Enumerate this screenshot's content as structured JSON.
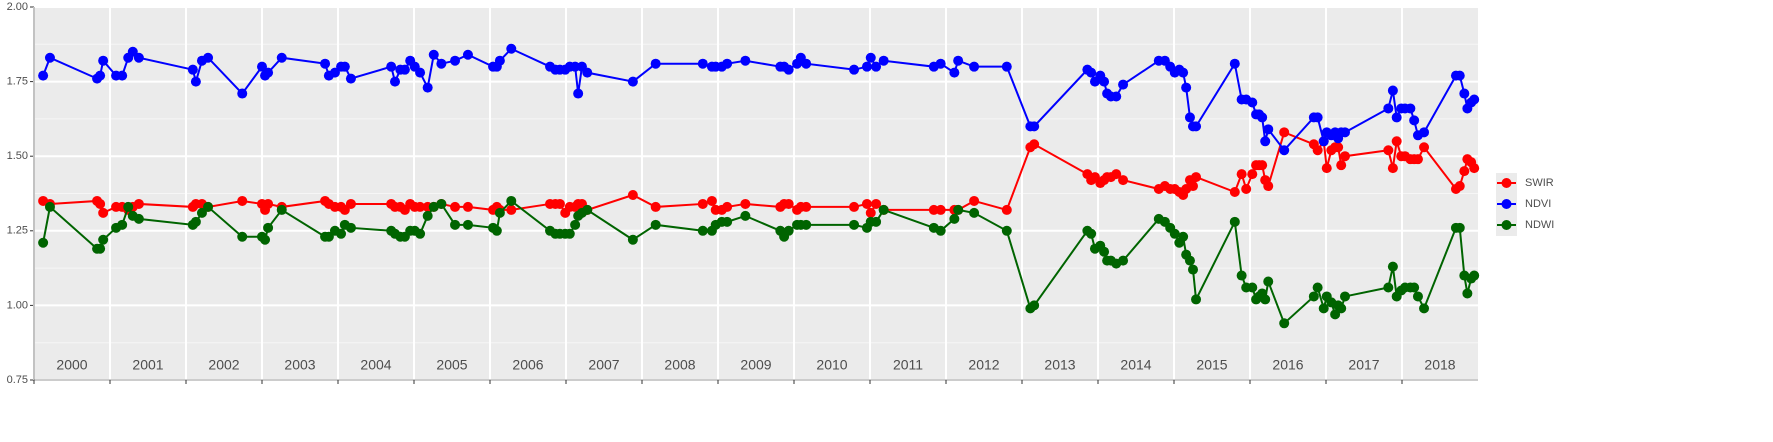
{
  "chart_data": {
    "type": "line",
    "x": [
      2000.12,
      2000.21,
      2000.83,
      2000.87,
      2000.91,
      2001.08,
      2001.16,
      2001.24,
      2001.3,
      2001.38,
      2002.09,
      2002.13,
      2002.21,
      2002.29,
      2002.74,
      2003.0,
      2003.04,
      2003.08,
      2003.26,
      2003.83,
      2003.88,
      2003.96,
      2004.04,
      2004.09,
      2004.17,
      2004.7,
      2004.75,
      2004.82,
      2004.88,
      2004.95,
      2005.01,
      2005.08,
      2005.18,
      2005.26,
      2005.36,
      2005.54,
      2005.71,
      2006.04,
      2006.09,
      2006.13,
      2006.28,
      2006.79,
      2006.86,
      2006.92,
      2006.99,
      2007.05,
      2007.12,
      2007.16,
      2007.21,
      2007.28,
      2007.88,
      2008.18,
      2008.8,
      2008.92,
      2008.97,
      2009.05,
      2009.12,
      2009.36,
      2009.82,
      2009.87,
      2009.93,
      2010.04,
      2010.09,
      2010.16,
      2010.79,
      2010.96,
      2011.01,
      2011.08,
      2011.18,
      2011.84,
      2011.93,
      2012.11,
      2012.16,
      2012.37,
      2012.8,
      2013.11,
      2013.16,
      2013.86,
      2013.91,
      2013.96,
      2014.03,
      2014.08,
      2014.12,
      2014.17,
      2014.24,
      2014.33,
      2014.8,
      2014.88,
      2014.95,
      2015.01,
      2015.07,
      2015.12,
      2015.16,
      2015.21,
      2015.25,
      2015.29,
      2015.8,
      2015.89,
      2015.95,
      2016.03,
      2016.08,
      2016.12,
      2016.16,
      2016.2,
      2016.24,
      2016.45,
      2016.84,
      2016.89,
      2016.97,
      2017.01,
      2017.07,
      2017.12,
      2017.16,
      2017.2,
      2017.25,
      2017.82,
      2017.88,
      2017.93,
      2017.99,
      2018.04,
      2018.11,
      2018.16,
      2018.21,
      2018.29,
      2018.71,
      2018.76,
      2018.82,
      2018.86,
      2018.91,
      2018.95
    ],
    "series": [
      {
        "name": "SWIR",
        "color": "#ff0000",
        "values": [
          1.35,
          1.34,
          1.35,
          1.34,
          1.31,
          1.33,
          1.33,
          1.32,
          1.33,
          1.34,
          1.33,
          1.34,
          1.34,
          1.33,
          1.35,
          1.34,
          1.32,
          1.34,
          1.33,
          1.35,
          1.34,
          1.33,
          1.33,
          1.32,
          1.34,
          1.34,
          1.33,
          1.33,
          1.32,
          1.34,
          1.33,
          1.33,
          1.33,
          1.33,
          1.34,
          1.33,
          1.33,
          1.32,
          1.33,
          1.32,
          1.32,
          1.34,
          1.34,
          1.34,
          1.31,
          1.33,
          1.33,
          1.34,
          1.34,
          1.32,
          1.37,
          1.33,
          1.34,
          1.35,
          1.32,
          1.32,
          1.33,
          1.34,
          1.33,
          1.34,
          1.34,
          1.32,
          1.33,
          1.33,
          1.33,
          1.34,
          1.31,
          1.34,
          1.32,
          1.32,
          1.32,
          1.32,
          1.32,
          1.35,
          1.32,
          1.53,
          1.54,
          1.44,
          1.42,
          1.43,
          1.41,
          1.42,
          1.43,
          1.43,
          1.44,
          1.42,
          1.39,
          1.4,
          1.39,
          1.39,
          1.38,
          1.37,
          1.39,
          1.42,
          1.4,
          1.43,
          1.38,
          1.44,
          1.39,
          1.44,
          1.47,
          1.47,
          1.47,
          1.42,
          1.4,
          1.58,
          1.54,
          1.52,
          1.55,
          1.46,
          1.52,
          1.53,
          1.53,
          1.47,
          1.5,
          1.52,
          1.46,
          1.55,
          1.5,
          1.5,
          1.49,
          1.49,
          1.49,
          1.53,
          1.39,
          1.4,
          1.45,
          1.49,
          1.48,
          1.46
        ]
      },
      {
        "name": "NDVI",
        "color": "#0000ff",
        "values": [
          1.77,
          1.83,
          1.76,
          1.77,
          1.82,
          1.77,
          1.77,
          1.83,
          1.85,
          1.83,
          1.79,
          1.75,
          1.82,
          1.83,
          1.71,
          1.8,
          1.77,
          1.78,
          1.83,
          1.81,
          1.77,
          1.78,
          1.8,
          1.8,
          1.76,
          1.8,
          1.75,
          1.79,
          1.79,
          1.82,
          1.8,
          1.78,
          1.73,
          1.84,
          1.81,
          1.82,
          1.84,
          1.8,
          1.8,
          1.82,
          1.86,
          1.8,
          1.79,
          1.79,
          1.79,
          1.8,
          1.8,
          1.71,
          1.8,
          1.78,
          1.75,
          1.81,
          1.81,
          1.8,
          1.8,
          1.8,
          1.81,
          1.82,
          1.8,
          1.8,
          1.79,
          1.81,
          1.83,
          1.81,
          1.79,
          1.8,
          1.83,
          1.8,
          1.82,
          1.8,
          1.81,
          1.78,
          1.82,
          1.8,
          1.8,
          1.6,
          1.6,
          1.79,
          1.78,
          1.75,
          1.77,
          1.75,
          1.71,
          1.7,
          1.7,
          1.74,
          1.82,
          1.82,
          1.8,
          1.78,
          1.79,
          1.78,
          1.73,
          1.63,
          1.6,
          1.6,
          1.81,
          1.69,
          1.69,
          1.68,
          1.64,
          1.64,
          1.63,
          1.55,
          1.59,
          1.52,
          1.63,
          1.63,
          1.55,
          1.58,
          1.57,
          1.58,
          1.56,
          1.58,
          1.58,
          1.66,
          1.72,
          1.63,
          1.66,
          1.66,
          1.66,
          1.62,
          1.57,
          1.58,
          1.77,
          1.77,
          1.71,
          1.66,
          1.68,
          1.69
        ]
      },
      {
        "name": "NDWI",
        "color": "#006400",
        "values": [
          1.21,
          1.33,
          1.19,
          1.19,
          1.22,
          1.26,
          1.27,
          1.33,
          1.3,
          1.29,
          1.27,
          1.28,
          1.31,
          1.33,
          1.23,
          1.23,
          1.22,
          1.26,
          1.32,
          1.23,
          1.23,
          1.25,
          1.24,
          1.27,
          1.26,
          1.25,
          1.24,
          1.23,
          1.23,
          1.25,
          1.25,
          1.24,
          1.3,
          1.33,
          1.34,
          1.27,
          1.27,
          1.26,
          1.25,
          1.31,
          1.35,
          1.25,
          1.24,
          1.24,
          1.24,
          1.24,
          1.27,
          1.3,
          1.31,
          1.32,
          1.22,
          1.27,
          1.25,
          1.25,
          1.27,
          1.28,
          1.28,
          1.3,
          1.25,
          1.23,
          1.25,
          1.27,
          1.27,
          1.27,
          1.27,
          1.26,
          1.28,
          1.28,
          1.32,
          1.26,
          1.25,
          1.29,
          1.32,
          1.31,
          1.25,
          0.99,
          1.0,
          1.25,
          1.24,
          1.19,
          1.2,
          1.18,
          1.15,
          1.15,
          1.14,
          1.15,
          1.29,
          1.28,
          1.26,
          1.24,
          1.21,
          1.23,
          1.17,
          1.15,
          1.12,
          1.02,
          1.28,
          1.1,
          1.06,
          1.06,
          1.02,
          1.03,
          1.04,
          1.02,
          1.08,
          0.94,
          1.03,
          1.06,
          0.99,
          1.03,
          1.01,
          0.97,
          1.0,
          0.99,
          1.03,
          1.06,
          1.13,
          1.03,
          1.05,
          1.06,
          1.06,
          1.06,
          1.03,
          0.99,
          1.26,
          1.26,
          1.1,
          1.04,
          1.09,
          1.1
        ]
      }
    ],
    "xlim": [
      2000,
      2019
    ],
    "xticks": [
      2000,
      2001,
      2002,
      2003,
      2004,
      2005,
      2006,
      2007,
      2008,
      2009,
      2010,
      2011,
      2012,
      2013,
      2014,
      2015,
      2016,
      2017,
      2018
    ],
    "ylim": [
      0.75,
      2.0
    ],
    "yticks": [
      {
        "value": 0.75,
        "label": "0.75"
      },
      {
        "value": 1.0,
        "label": "1.00"
      },
      {
        "value": 1.25,
        "label": "1.25"
      },
      {
        "value": 1.5,
        "label": "1.50"
      },
      {
        "value": 1.75,
        "label": "1.75"
      },
      {
        "value": 2.0,
        "label": "2.00"
      }
    ],
    "grid": true,
    "legend": "right"
  }
}
